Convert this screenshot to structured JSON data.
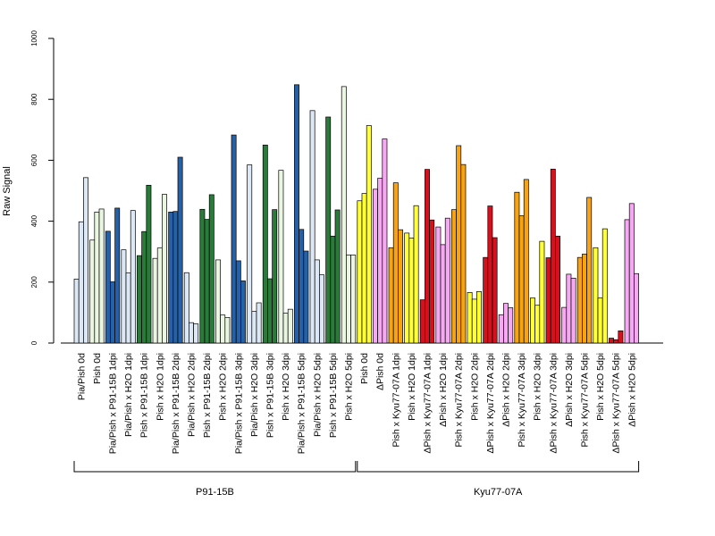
{
  "chart_data": {
    "type": "bar",
    "ylabel": "Raw Signal",
    "xlabel": "",
    "ylim": [
      0,
      1000
    ],
    "yticks": [
      0,
      200,
      400,
      600,
      800,
      1000
    ],
    "groups": [
      {
        "label": "P91-15B",
        "first": 0,
        "last": 17
      },
      {
        "label": "Kyu77-07A",
        "first": 18,
        "last": 35
      }
    ],
    "categories": [
      {
        "label": "Pia/Pish 0d",
        "color": "#dce8f6",
        "values": [
          210,
          398,
          543
        ]
      },
      {
        "label": "Pish 0d",
        "color": "#eaf6e2",
        "values": [
          338,
          430,
          440
        ]
      },
      {
        "label": "Pia/Pish x P91-15B 1dpi",
        "color": "#2461a8",
        "values": [
          367,
          201,
          443
        ]
      },
      {
        "label": "Pia/Pish x H2O 1dpi",
        "color": "#dce8f6",
        "values": [
          306,
          230,
          435
        ]
      },
      {
        "label": "Pish x P91-15B 1dpi",
        "color": "#2a7a3a",
        "values": [
          287,
          366,
          518
        ]
      },
      {
        "label": "Pish x H2O 1dpi",
        "color": "#eaf6e2",
        "values": [
          278,
          312,
          488
        ]
      },
      {
        "label": "Pia/Pish x P91-15B 2dpi",
        "color": "#2461a8",
        "values": [
          430,
          432,
          610
        ]
      },
      {
        "label": "Pia/Pish x H2O 2dpi",
        "color": "#dce8f6",
        "values": [
          231,
          67,
          63
        ]
      },
      {
        "label": "Pish x P91-15B 2dpi",
        "color": "#2a7a3a",
        "values": [
          439,
          406,
          487
        ]
      },
      {
        "label": "Pish x H2O 2dpi",
        "color": "#eaf6e2",
        "values": [
          273,
          92,
          84
        ]
      },
      {
        "label": "Pia/Pish x P91-15B 3dpi",
        "color": "#2461a8",
        "values": [
          683,
          270,
          204
        ]
      },
      {
        "label": "Pia/Pish x H2O 3dpi",
        "color": "#dce8f6",
        "values": [
          585,
          104,
          132
        ]
      },
      {
        "label": "Pish x P91-15B 3dpi",
        "color": "#2a7a3a",
        "values": [
          650,
          211,
          438
        ]
      },
      {
        "label": "Pish x H2O 3dpi",
        "color": "#eaf6e2",
        "values": [
          567,
          98,
          111
        ]
      },
      {
        "label": "Pia/Pish x P91-15B 5dpi",
        "color": "#2461a8",
        "values": [
          848,
          373,
          302
        ]
      },
      {
        "label": "Pia/Pish x H2O 5dpi",
        "color": "#dce8f6",
        "values": [
          763,
          273,
          224
        ]
      },
      {
        "label": "Pish x P91-15B 5dpi",
        "color": "#2a7a3a",
        "values": [
          742,
          351,
          437
        ]
      },
      {
        "label": "Pish x H2O 5dpi",
        "color": "#eaf6e2",
        "values": [
          842,
          289,
          289
        ]
      },
      {
        "label": "Pish 0d",
        "color": "#ffff33",
        "values": [
          467,
          491,
          714
        ]
      },
      {
        "label": "ΔPish 0d",
        "color": "#f6a8f2",
        "values": [
          505,
          541,
          670
        ]
      },
      {
        "label": "Pish x Kyu77-07A 1dpi",
        "color": "#f8a410",
        "values": [
          313,
          526,
          372
        ]
      },
      {
        "label": "Pish x H2O 1dpi",
        "color": "#ffff33",
        "values": [
          361,
          345,
          451
        ]
      },
      {
        "label": "ΔPish x Kyu77-07A 1dpi",
        "color": "#d8101e",
        "values": [
          142,
          570,
          404
        ]
      },
      {
        "label": "ΔPish x H2O 1dpi",
        "color": "#f6a8f2",
        "values": [
          381,
          323,
          410
        ]
      },
      {
        "label": "Pish x Kyu77-07A 2dpi",
        "color": "#f8a410",
        "values": [
          438,
          648,
          586
        ]
      },
      {
        "label": "Pish x H2O 2dpi",
        "color": "#ffff33",
        "values": [
          166,
          144,
          169
        ]
      },
      {
        "label": "ΔPish x Kyu77-07A 2dpi",
        "color": "#d8101e",
        "values": [
          281,
          450,
          346
        ]
      },
      {
        "label": "ΔPish x H2O 2dpi",
        "color": "#f6a8f2",
        "values": [
          93,
          130,
          116
        ]
      },
      {
        "label": "Pish x Kyu77-07A 3dpi",
        "color": "#f8a410",
        "values": [
          495,
          418,
          537
        ]
      },
      {
        "label": "Pish x H2O 3dpi",
        "color": "#ffff33",
        "values": [
          148,
          124,
          334
        ]
      },
      {
        "label": "ΔPish x Kyu77-07A 3dpi",
        "color": "#d8101e",
        "values": [
          280,
          571,
          351
        ]
      },
      {
        "label": "ΔPish x H2O 3dpi",
        "color": "#f6a8f2",
        "values": [
          117,
          226,
          213
        ]
      },
      {
        "label": "Pish x Kyu77-07A 5dpi",
        "color": "#f8a410",
        "values": [
          281,
          292,
          478
        ]
      },
      {
        "label": "Pish x H2O 5dpi",
        "color": "#ffff33",
        "values": [
          313,
          148,
          375
        ]
      },
      {
        "label": "ΔPish x Kyu77-07A 5dpi",
        "color": "#d8101e",
        "values": [
          16,
          11,
          40
        ]
      },
      {
        "label": "ΔPish x H2O 5dpi",
        "color": "#f6a8f2",
        "values": [
          405,
          458,
          228
        ]
      }
    ]
  }
}
